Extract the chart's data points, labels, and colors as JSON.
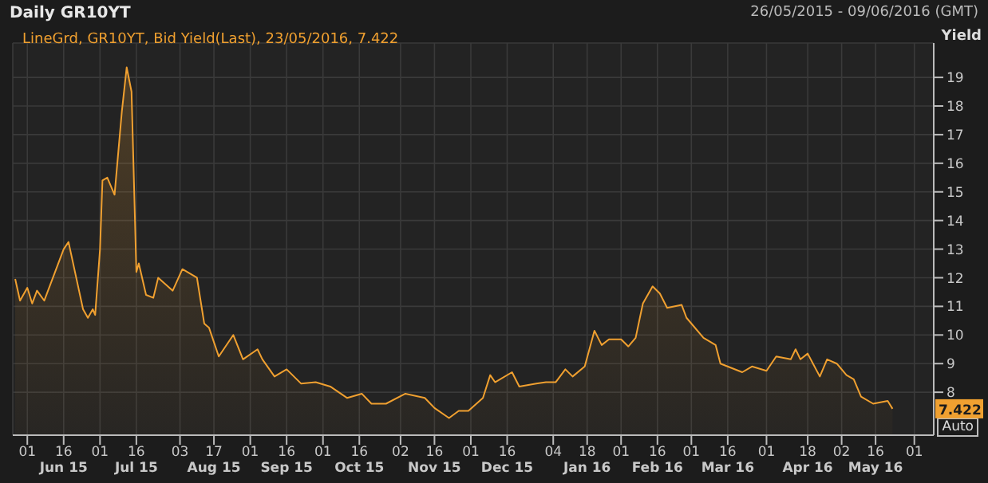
{
  "chart_data": {
    "type": "area",
    "title": "Daily GR10YT",
    "subtitle": "26/05/2015 - 09/06/2016 (GMT)",
    "ylabel": "Yield",
    "legend": "top left",
    "x": [
      "2015-05-27",
      "2015-05-29",
      "2015-06-01",
      "2015-06-03",
      "2015-06-05",
      "2015-06-08",
      "2015-06-16",
      "2015-06-18",
      "2015-06-24",
      "2015-06-26",
      "2015-06-28",
      "2015-06-29",
      "2015-07-01",
      "2015-07-02",
      "2015-07-04",
      "2015-07-07",
      "2015-07-10",
      "2015-07-12",
      "2015-07-14",
      "2015-07-16",
      "2015-07-17",
      "2015-07-20",
      "2015-07-23",
      "2015-07-25",
      "2015-07-31",
      "2015-08-04",
      "2015-08-10",
      "2015-08-13",
      "2015-08-15",
      "2015-08-19",
      "2015-08-25",
      "2015-08-29",
      "2015-09-04",
      "2015-09-06",
      "2015-09-11",
      "2015-09-16",
      "2015-09-22",
      "2015-09-28",
      "2015-10-04",
      "2015-10-11",
      "2015-10-17",
      "2015-10-21",
      "2015-10-27",
      "2015-11-04",
      "2015-11-12",
      "2015-11-16",
      "2015-11-22",
      "2015-11-26",
      "2015-11-30",
      "2015-12-06",
      "2015-12-09",
      "2015-12-11",
      "2015-12-18",
      "2015-12-21",
      "2015-12-28",
      "2016-01-01",
      "2016-01-05",
      "2016-01-09",
      "2016-01-12",
      "2016-01-17",
      "2016-01-21",
      "2016-01-24",
      "2016-01-27",
      "2016-02-01",
      "2016-02-04",
      "2016-02-07",
      "2016-02-10",
      "2016-02-14",
      "2016-02-17",
      "2016-02-20",
      "2016-02-26",
      "2016-02-28",
      "2016-03-06",
      "2016-03-11",
      "2016-03-13",
      "2016-03-22",
      "2016-03-26",
      "2016-04-01",
      "2016-04-05",
      "2016-04-11",
      "2016-04-13",
      "2016-04-15",
      "2016-04-18",
      "2016-04-23",
      "2016-04-26",
      "2016-04-30",
      "2016-05-04",
      "2016-05-07",
      "2016-05-10",
      "2016-05-15",
      "2016-05-21",
      "2016-05-23"
    ],
    "series": [
      {
        "name": "LineGrd, GR10YT, Bid Yield(Last), 23/05/2016, 7.422",
        "color": "#f0a030",
        "values": [
          11.96,
          11.2,
          11.65,
          11.1,
          11.55,
          11.2,
          13.0,
          13.25,
          10.9,
          10.6,
          10.9,
          10.7,
          13.0,
          15.4,
          15.5,
          14.9,
          17.8,
          19.35,
          18.5,
          12.2,
          12.5,
          11.4,
          11.3,
          12.0,
          11.55,
          12.3,
          12.0,
          10.4,
          10.25,
          9.25,
          10.0,
          9.15,
          9.5,
          9.15,
          8.55,
          8.8,
          8.3,
          8.35,
          8.2,
          7.8,
          7.95,
          7.6,
          7.6,
          7.95,
          7.8,
          7.45,
          7.1,
          7.35,
          7.35,
          7.8,
          8.6,
          8.35,
          8.7,
          8.2,
          8.3,
          8.35,
          8.35,
          8.8,
          8.55,
          8.9,
          10.15,
          9.65,
          9.85,
          9.85,
          9.6,
          9.9,
          11.1,
          11.7,
          11.45,
          10.95,
          11.05,
          10.6,
          9.9,
          9.65,
          9.0,
          8.7,
          8.9,
          8.75,
          9.25,
          9.15,
          9.5,
          9.15,
          9.35,
          8.55,
          9.15,
          9.0,
          8.6,
          8.45,
          7.85,
          7.6,
          7.7,
          7.422
        ]
      }
    ],
    "xlim": [
      "2015-05-26",
      "2016-06-09"
    ],
    "xticks": [
      {
        "value": "2015-06-01",
        "label": "01"
      },
      {
        "value": "2015-06-16",
        "label": "16\nJun 15"
      },
      {
        "value": "2015-07-01",
        "label": "01"
      },
      {
        "value": "2015-07-16",
        "label": "16\nJul 15"
      },
      {
        "value": "2015-08-03",
        "label": "03"
      },
      {
        "value": "2015-08-17",
        "label": "17\nAug 15"
      },
      {
        "value": "2015-09-01",
        "label": "01"
      },
      {
        "value": "2015-09-16",
        "label": "16\nSep 15"
      },
      {
        "value": "2015-10-01",
        "label": "01"
      },
      {
        "value": "2015-10-16",
        "label": "16\nOct 15"
      },
      {
        "value": "2015-11-02",
        "label": "02"
      },
      {
        "value": "2015-11-16",
        "label": "16\nNov 15"
      },
      {
        "value": "2015-12-01",
        "label": "01"
      },
      {
        "value": "2015-12-16",
        "label": "16\nDec 15"
      },
      {
        "value": "2016-01-04",
        "label": "04"
      },
      {
        "value": "2016-01-18",
        "label": "18\nJan 16"
      },
      {
        "value": "2016-02-01",
        "label": "01"
      },
      {
        "value": "2016-02-16",
        "label": "16\nFeb 16"
      },
      {
        "value": "2016-03-01",
        "label": "01"
      },
      {
        "value": "2016-03-16",
        "label": "16\nMar 16"
      },
      {
        "value": "2016-04-01",
        "label": "01"
      },
      {
        "value": "2016-04-18",
        "label": "18\nApr 16"
      },
      {
        "value": "2016-05-02",
        "label": "02"
      },
      {
        "value": "2016-05-16",
        "label": "16\nMay 16"
      },
      {
        "value": "2016-06-01",
        "label": "01"
      }
    ],
    "ylim": [
      6.5,
      20.2
    ],
    "yticks": [
      8,
      9,
      10,
      11,
      12,
      13,
      14,
      15,
      16,
      17,
      18,
      19
    ],
    "grid": true,
    "annotations": [
      "7.422",
      "Auto"
    ]
  }
}
